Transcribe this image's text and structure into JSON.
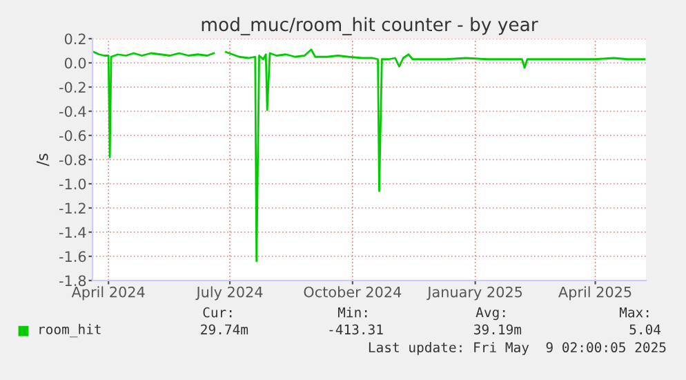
{
  "chart_data": {
    "type": "line",
    "title": "mod_muc/room_hit counter - by year",
    "ylabel": "/s",
    "x": [
      "2024-03-21",
      "2024-03-25",
      "2024-03-29",
      "2024-04-01",
      "2024-04-02",
      "2024-04-03",
      "2024-04-08",
      "2024-04-14",
      "2024-04-20",
      "2024-04-26",
      "2024-05-03",
      "2024-05-10",
      "2024-05-17",
      "2024-05-24",
      "2024-05-31",
      "2024-06-07",
      "2024-06-14",
      "2024-06-19",
      "2024-06-20",
      "2024-06-27",
      "2024-06-28",
      "2024-07-03",
      "2024-07-08",
      "2024-07-15",
      "2024-07-20",
      "2024-07-21",
      "2024-07-23",
      "2024-07-26",
      "2024-07-28",
      "2024-07-29",
      "2024-07-31",
      "2024-08-05",
      "2024-08-12",
      "2024-08-19",
      "2024-08-26",
      "2024-08-31",
      "2024-09-03",
      "2024-09-12",
      "2024-09-20",
      "2024-09-28",
      "2024-10-08",
      "2024-10-16",
      "2024-10-20",
      "2024-10-21",
      "2024-10-23",
      "2024-10-28",
      "2024-11-02",
      "2024-11-05",
      "2024-11-08",
      "2024-11-12",
      "2024-11-15",
      "2024-11-25",
      "2024-12-10",
      "2024-12-25",
      "2025-01-10",
      "2025-01-25",
      "2025-02-05",
      "2025-02-07",
      "2025-02-09",
      "2025-02-20",
      "2025-03-05",
      "2025-03-20",
      "2025-04-01",
      "2025-04-15",
      "2025-04-25",
      "2025-05-08"
    ],
    "series": [
      {
        "name": "room_hit",
        "color": "#00cc00",
        "values": [
          0.09,
          0.07,
          0.06,
          0.06,
          -0.78,
          0.05,
          0.07,
          0.06,
          0.08,
          0.06,
          0.08,
          0.07,
          0.06,
          0.08,
          0.06,
          0.07,
          0.06,
          0.08,
          null,
          null,
          0.09,
          0.07,
          0.05,
          0.04,
          0.05,
          -1.64,
          0.06,
          0.03,
          0.07,
          -0.39,
          0.08,
          0.06,
          0.07,
          0.05,
          0.06,
          0.11,
          0.05,
          0.05,
          0.06,
          0.05,
          0.04,
          0.04,
          0.03,
          -1.06,
          0.03,
          0.03,
          0.04,
          -0.03,
          0.04,
          0.07,
          0.03,
          0.03,
          0.03,
          0.04,
          0.03,
          0.03,
          0.03,
          -0.04,
          0.03,
          0.03,
          0.03,
          0.03,
          0.03,
          0.04,
          0.03,
          0.03
        ]
      }
    ],
    "xlim": [
      "2024-03-20",
      "2025-05-09"
    ],
    "xticks": [
      {
        "value": "2024-04-01",
        "label": "April 2024"
      },
      {
        "value": "2024-07-01",
        "label": "July 2024"
      },
      {
        "value": "2024-10-01",
        "label": "October 2024"
      },
      {
        "value": "2025-01-01",
        "label": "January 2025"
      },
      {
        "value": "2025-04-01",
        "label": "April 2025"
      }
    ],
    "ylim": [
      -1.8,
      0.2
    ],
    "yticks": [
      {
        "value": -1.8,
        "label": "-1.8"
      },
      {
        "value": -1.6,
        "label": "-1.6"
      },
      {
        "value": -1.4,
        "label": "-1.4"
      },
      {
        "value": -1.2,
        "label": "-1.2"
      },
      {
        "value": -1.0,
        "label": "-1.0"
      },
      {
        "value": -0.8,
        "label": "-0.8"
      },
      {
        "value": -0.6,
        "label": "-0.6"
      },
      {
        "value": -0.4,
        "label": "-0.4"
      },
      {
        "value": -0.2,
        "label": "-0.2"
      },
      {
        "value": 0.0,
        "label": "0.0"
      },
      {
        "value": 0.2,
        "label": "0.2"
      }
    ],
    "grid": true,
    "legend": "bottom",
    "marker": "none",
    "line_style": "solid",
    "annotations": [
      "Cur:",
      "Min:",
      "Avg:",
      "Max:",
      "29.74m",
      "-413.31",
      "39.19m",
      "5.04",
      "Last update: Fri May  9 02:00:05 2025"
    ]
  }
}
